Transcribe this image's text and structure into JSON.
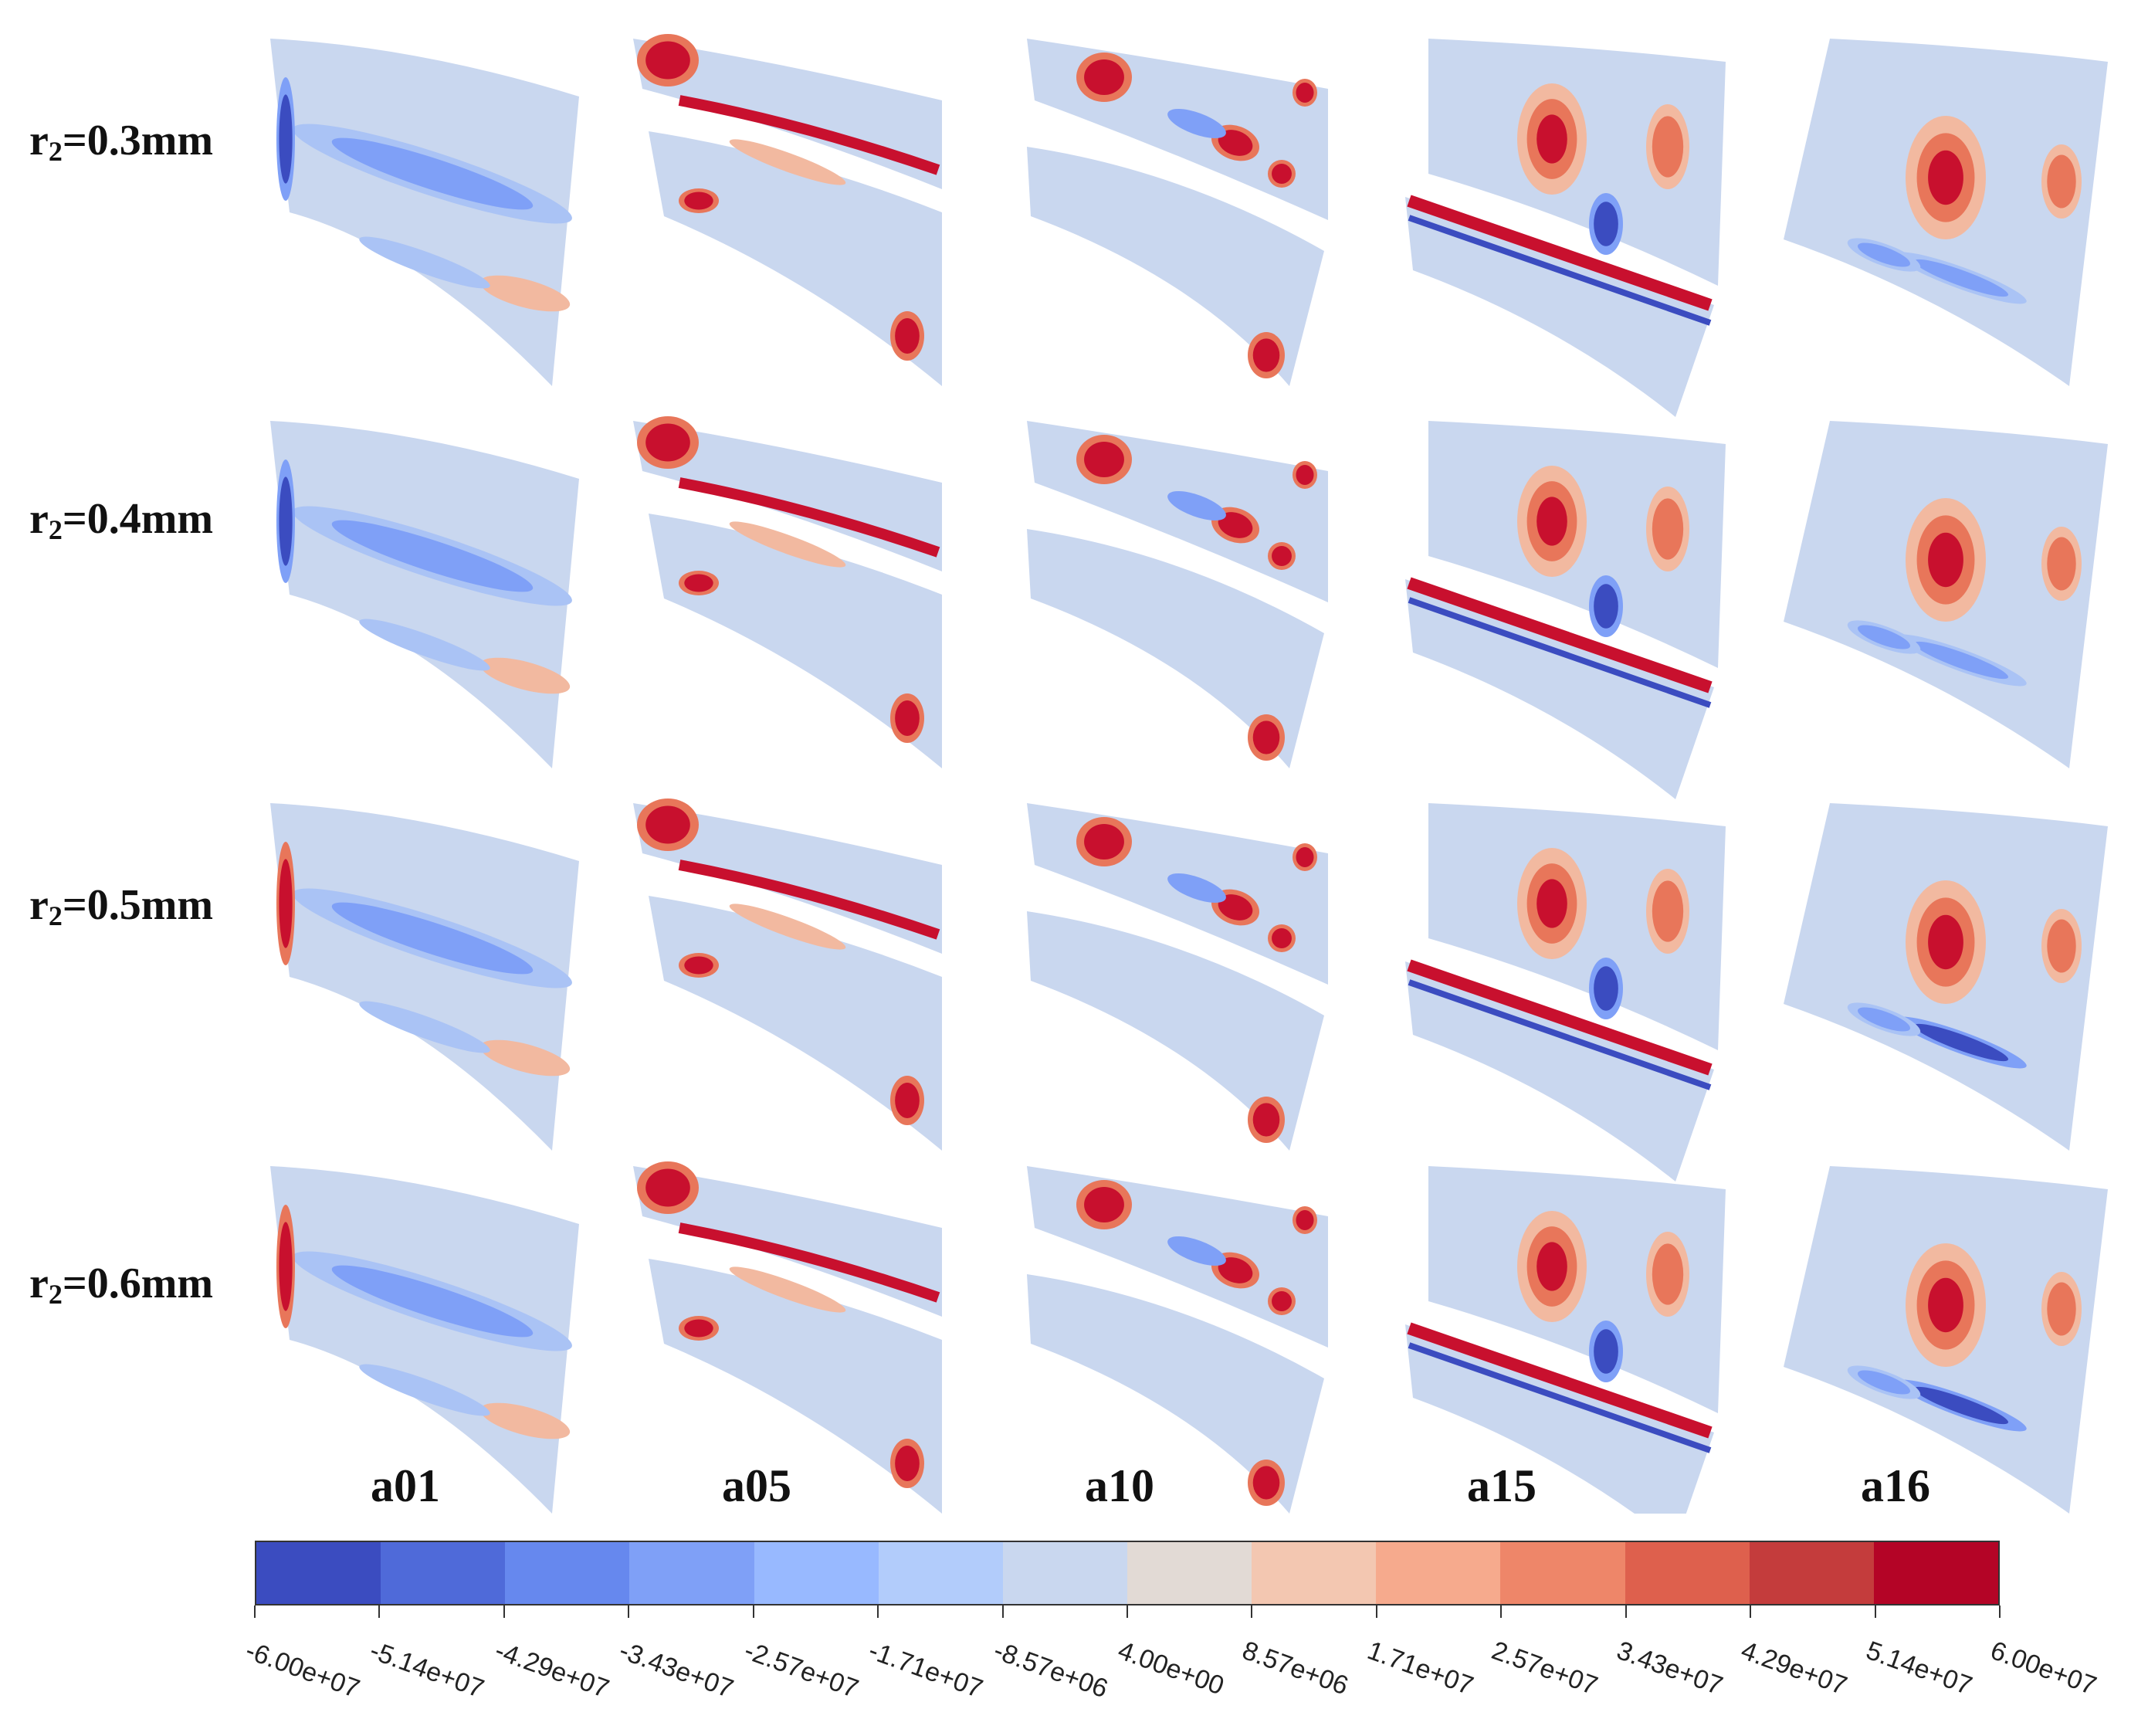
{
  "row_labels": [
    {
      "prefix": "r",
      "sub": "2",
      "suffix": "=0.3mm"
    },
    {
      "prefix": "r",
      "sub": "2",
      "suffix": "=0.4mm"
    },
    {
      "prefix": "r",
      "sub": "2",
      "suffix": "=0.5mm"
    },
    {
      "prefix": "r",
      "sub": "2",
      "suffix": "=0.6mm"
    }
  ],
  "column_labels": [
    "a01",
    "a05",
    "a10",
    "a15",
    "a16"
  ],
  "colorbar": {
    "tick_labels": [
      "-6.00e+07",
      "-5.14e+07",
      "-4.29e+07",
      "-3.43e+07",
      "-2.57e+07",
      "-1.71e+07",
      "-8.57e+06",
      "4.00e+00",
      "8.57e+06",
      "1.71e+07",
      "2.57e+07",
      "3.43e+07",
      "4.29e+07",
      "5.14e+07",
      "6.00e+07"
    ],
    "colors": [
      "#3b4cc0",
      "#4f6ad9",
      "#6688ee",
      "#7fa0f7",
      "#98b9ff",
      "#b2ccfb",
      "#c9d7ef",
      "#e2dad5",
      "#f3c7b1",
      "#f6aa8d",
      "#ee8669",
      "#de604d",
      "#c43c3c",
      "#b40426"
    ]
  },
  "field_colors": {
    "background": "#c9d7ef",
    "strong_red": "#c8102e",
    "light_red": "#f2b9a0",
    "mid_red": "#e8765a",
    "strong_blue": "#3b4cc0",
    "mid_blue": "#7fa0f7",
    "light_blue": "#aac3f5"
  }
}
